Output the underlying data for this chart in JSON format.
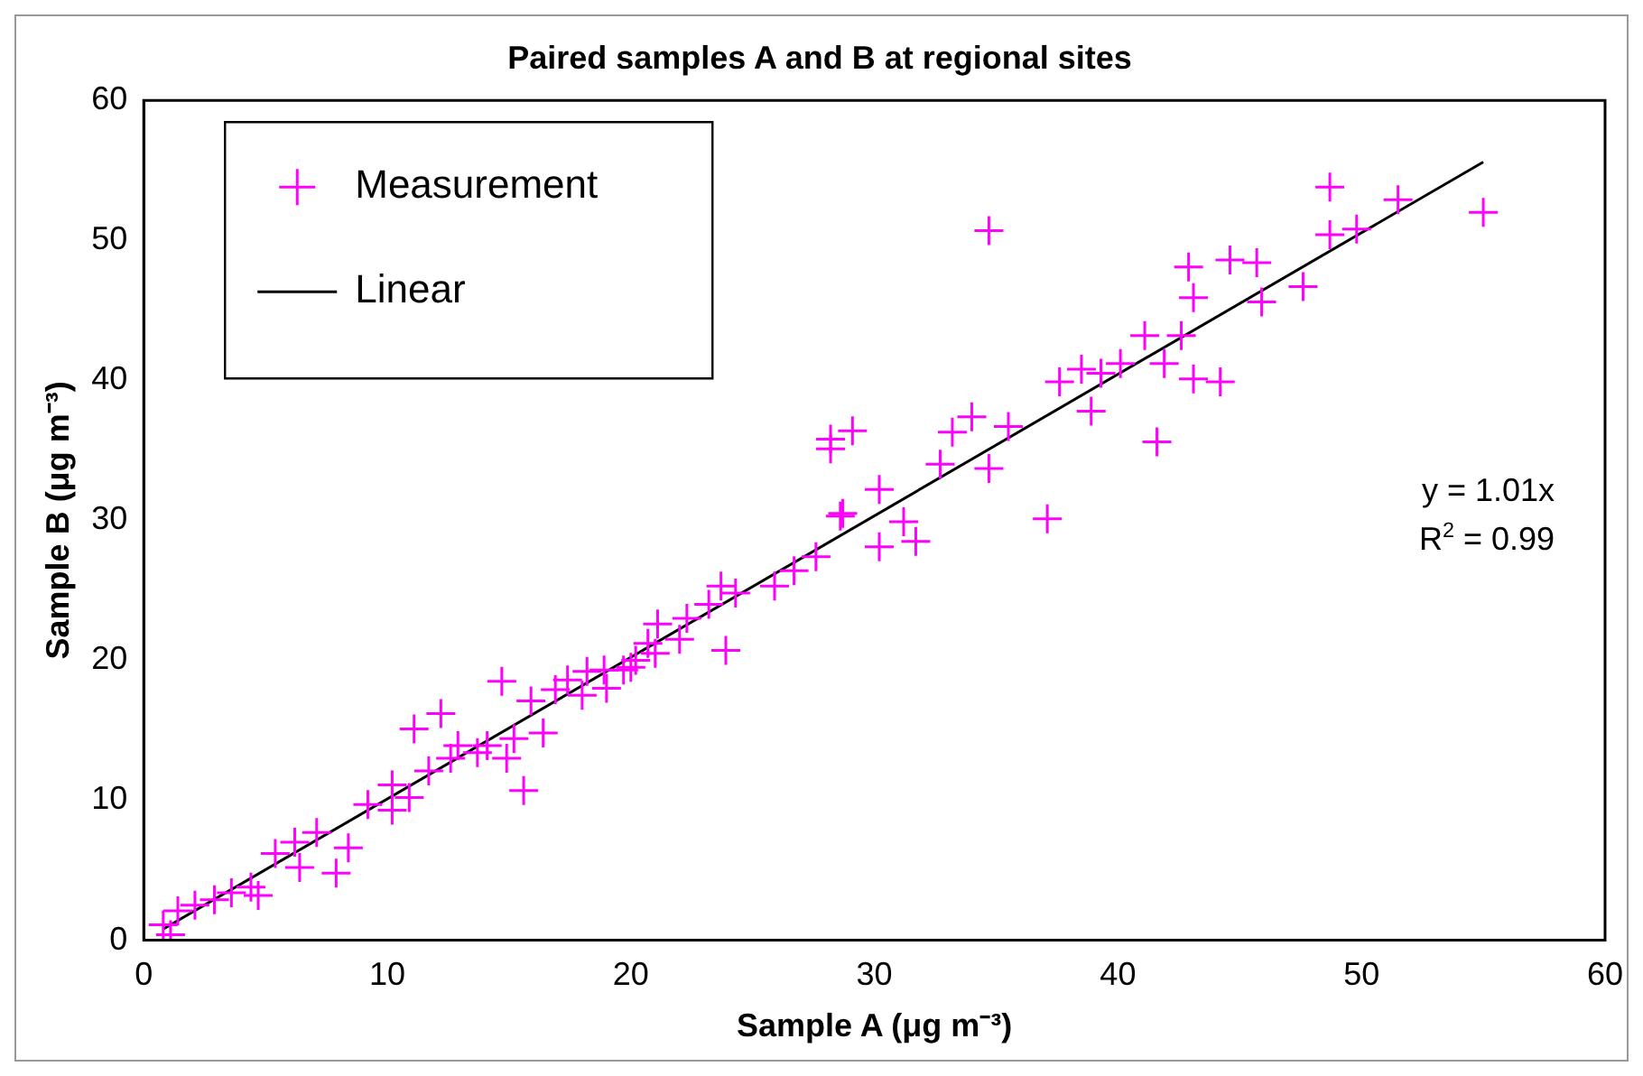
{
  "chart_data": {
    "type": "scatter",
    "title": "Paired samples A and B at regional sites",
    "xlabel": "Sample A (μg m⁻³)",
    "ylabel": "Sample B (μg m⁻³)",
    "xlim": [
      0,
      60
    ],
    "xticks": [
      0,
      10,
      20,
      30,
      40,
      50,
      60
    ],
    "ylim": [
      0,
      60
    ],
    "yticks": [
      0,
      10,
      20,
      30,
      40,
      50,
      60
    ],
    "grid": false,
    "legend": "top left",
    "marker": "cross",
    "annotations": [
      "y = 1.01x",
      "R$^{2}$ = 0.99"
    ],
    "series": [
      {
        "name": "Measurement",
        "color": "#ff00ff",
        "type": "scatter",
        "x": [
          34.7,
          55.0,
          48.7,
          51.5,
          49.8,
          48.7,
          47.6,
          45.9,
          45.7,
          44.6,
          42.9,
          43.1,
          44.2,
          43.1,
          42.6,
          41.9,
          41.1,
          40.1,
          39.3,
          38.5,
          37.6,
          38.9,
          41.6,
          37.1,
          35.5,
          34.0,
          33.2,
          34.7,
          32.7,
          29.1,
          28.2,
          31.2,
          30.2,
          28.7,
          30.2,
          31.7,
          28.2,
          28.6,
          27.6,
          26.7,
          25.9,
          24.3,
          23.9,
          23.7,
          23.2,
          22.3,
          21.1,
          20.7,
          20.2,
          19.7,
          18.9,
          18.2,
          17.4,
          14.7,
          16.9,
          15.6,
          15.9,
          16.4,
          15.2,
          13.7,
          12.2,
          11.1,
          12.6,
          11.7,
          10.2,
          9.2,
          8.4,
          7.1,
          6.2,
          5.4,
          6.4,
          4.4,
          3.6,
          2.9,
          2.1,
          1.4,
          0.8,
          1.1,
          4.7,
          7.9,
          10.2,
          10.9,
          12.9,
          14.1,
          14.9,
          18.0,
          19.0,
          20.0,
          21.0,
          22.0
        ],
        "values": [
          50.7,
          52.0,
          53.8,
          52.9,
          50.8,
          50.4,
          46.7,
          45.6,
          48.4,
          48.6,
          48.1,
          45.9,
          39.9,
          40.1,
          43.2,
          41.2,
          43.2,
          41.2,
          40.5,
          40.8,
          39.9,
          37.8,
          35.6,
          30.1,
          36.7,
          37.4,
          36.3,
          33.7,
          34.0,
          36.4,
          35.8,
          29.9,
          32.2,
          30.5,
          28.1,
          28.5,
          35.1,
          30.3,
          27.4,
          26.4,
          25.3,
          24.8,
          20.7,
          25.3,
          24.0,
          23.0,
          22.6,
          21.2,
          20.0,
          19.3,
          19.3,
          19.2,
          18.6,
          18.5,
          17.9,
          10.7,
          17.1,
          14.8,
          14.4,
          13.4,
          16.2,
          15.1,
          13.0,
          12.1,
          11.1,
          9.7,
          6.6,
          7.7,
          7.0,
          6.2,
          5.2,
          3.8,
          3.4,
          2.9,
          2.5,
          2.1,
          1.1,
          0.4,
          3.2,
          4.8,
          9.3,
          10.2,
          13.9,
          13.9,
          13.0,
          17.5,
          18.0,
          19.5,
          20.5,
          21.5
        ]
      },
      {
        "name": "Linear",
        "color": "#000000",
        "type": "line",
        "marker": "none",
        "x": [
          0.8,
          55.0
        ],
        "values": [
          0.8,
          55.6
        ]
      }
    ]
  }
}
